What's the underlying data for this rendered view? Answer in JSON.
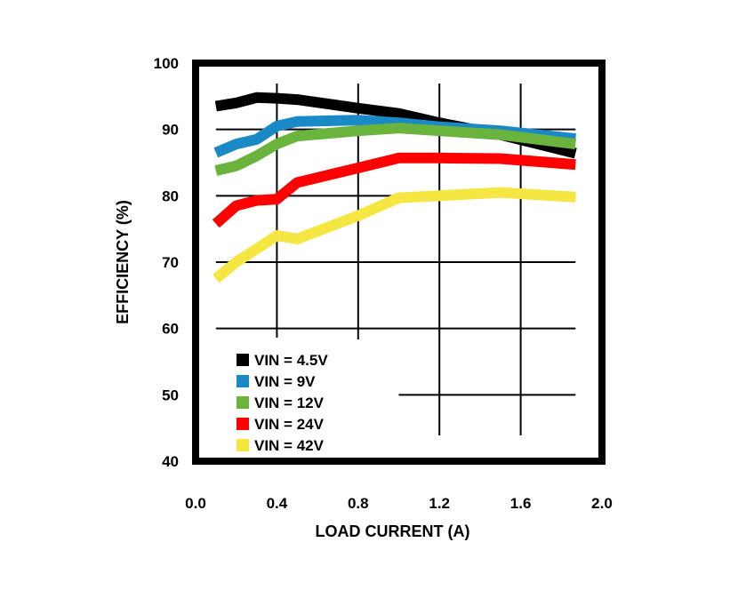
{
  "chart_data": {
    "type": "line",
    "title": "",
    "xlabel": "LOAD CURRENT (A)",
    "ylabel": "EFFICIENCY (%)",
    "xlim": [
      0,
      2
    ],
    "ylim": [
      40,
      100
    ],
    "xticks": [
      0,
      0.4,
      0.8,
      1.2,
      1.6,
      2.0
    ],
    "xtick_labels": [
      "0.0",
      "0.4",
      "0.8",
      "1.2",
      "1.6",
      "2.0"
    ],
    "yticks": [
      40,
      50,
      60,
      70,
      80,
      90,
      100
    ],
    "ytick_labels": [
      "40",
      "50",
      "60",
      "70",
      "80",
      "90",
      "100"
    ],
    "grid": true,
    "legend_position": "lower-left",
    "series": [
      {
        "name": "VIN = 4.5V",
        "color": "#000000",
        "x": [
          0.1,
          0.2,
          0.3,
          0.4,
          0.5,
          0.8,
          1.0,
          1.2,
          1.5,
          1.87
        ],
        "y": [
          93.5,
          94.0,
          94.8,
          94.7,
          94.5,
          93.2,
          92.4,
          91.0,
          89.2,
          86.4
        ]
      },
      {
        "name": "VIN = 9V",
        "color": "#1a8ac6",
        "x": [
          0.1,
          0.2,
          0.3,
          0.4,
          0.5,
          0.8,
          1.0,
          1.2,
          1.5,
          1.87
        ],
        "y": [
          86.5,
          87.8,
          88.5,
          90.5,
          91.2,
          91.4,
          91.0,
          90.4,
          89.8,
          88.6
        ]
      },
      {
        "name": "VIN = 12V",
        "color": "#6ab43e",
        "x": [
          0.1,
          0.2,
          0.3,
          0.4,
          0.5,
          0.8,
          1.0,
          1.2,
          1.5,
          1.87
        ],
        "y": [
          83.8,
          84.5,
          86.0,
          87.8,
          89.0,
          89.8,
          90.2,
          89.8,
          89.2,
          87.8
        ]
      },
      {
        "name": "VIN = 24V",
        "color": "#ff0000",
        "x": [
          0.1,
          0.2,
          0.3,
          0.4,
          0.5,
          0.8,
          1.0,
          1.2,
          1.5,
          1.87
        ],
        "y": [
          75.8,
          78.5,
          79.3,
          79.5,
          82.0,
          84.2,
          85.7,
          85.7,
          85.6,
          84.7
        ]
      },
      {
        "name": "VIN = 42V",
        "color": "#f5e642",
        "x": [
          0.1,
          0.2,
          0.3,
          0.4,
          0.5,
          0.8,
          1.0,
          1.2,
          1.5,
          1.87
        ],
        "y": [
          67.5,
          70.0,
          72.0,
          74.0,
          73.5,
          77.0,
          79.7,
          80.0,
          80.5,
          79.8
        ]
      }
    ]
  }
}
